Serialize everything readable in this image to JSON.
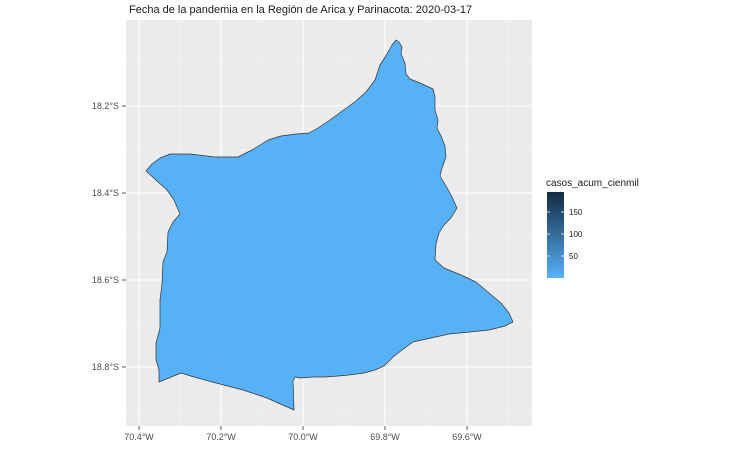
{
  "title": "Fecha de la pandemia en la Región de Arica y Parinacota: 2020-03-17",
  "chart_data": {
    "type": "choropleth-map",
    "region": "Región de Arica y Parinacota",
    "date": "2020-03-17",
    "x_ticks": [
      "70.4°W",
      "70.2°W",
      "70.0°W",
      "69.8°W",
      "69.6°W"
    ],
    "y_ticks": [
      "18.2°S",
      "18.4°S",
      "18.6°S",
      "18.8°S"
    ],
    "legend": {
      "title": "casos_acum_cienmil",
      "labels": [
        "150",
        "100",
        "50"
      ],
      "low_color": "#56B1F7",
      "high_color": "#132B43"
    },
    "fill_color": "#56B1F7",
    "panel_background": "#EBEBEB",
    "grid_on": true,
    "legend_placement": "right"
  }
}
